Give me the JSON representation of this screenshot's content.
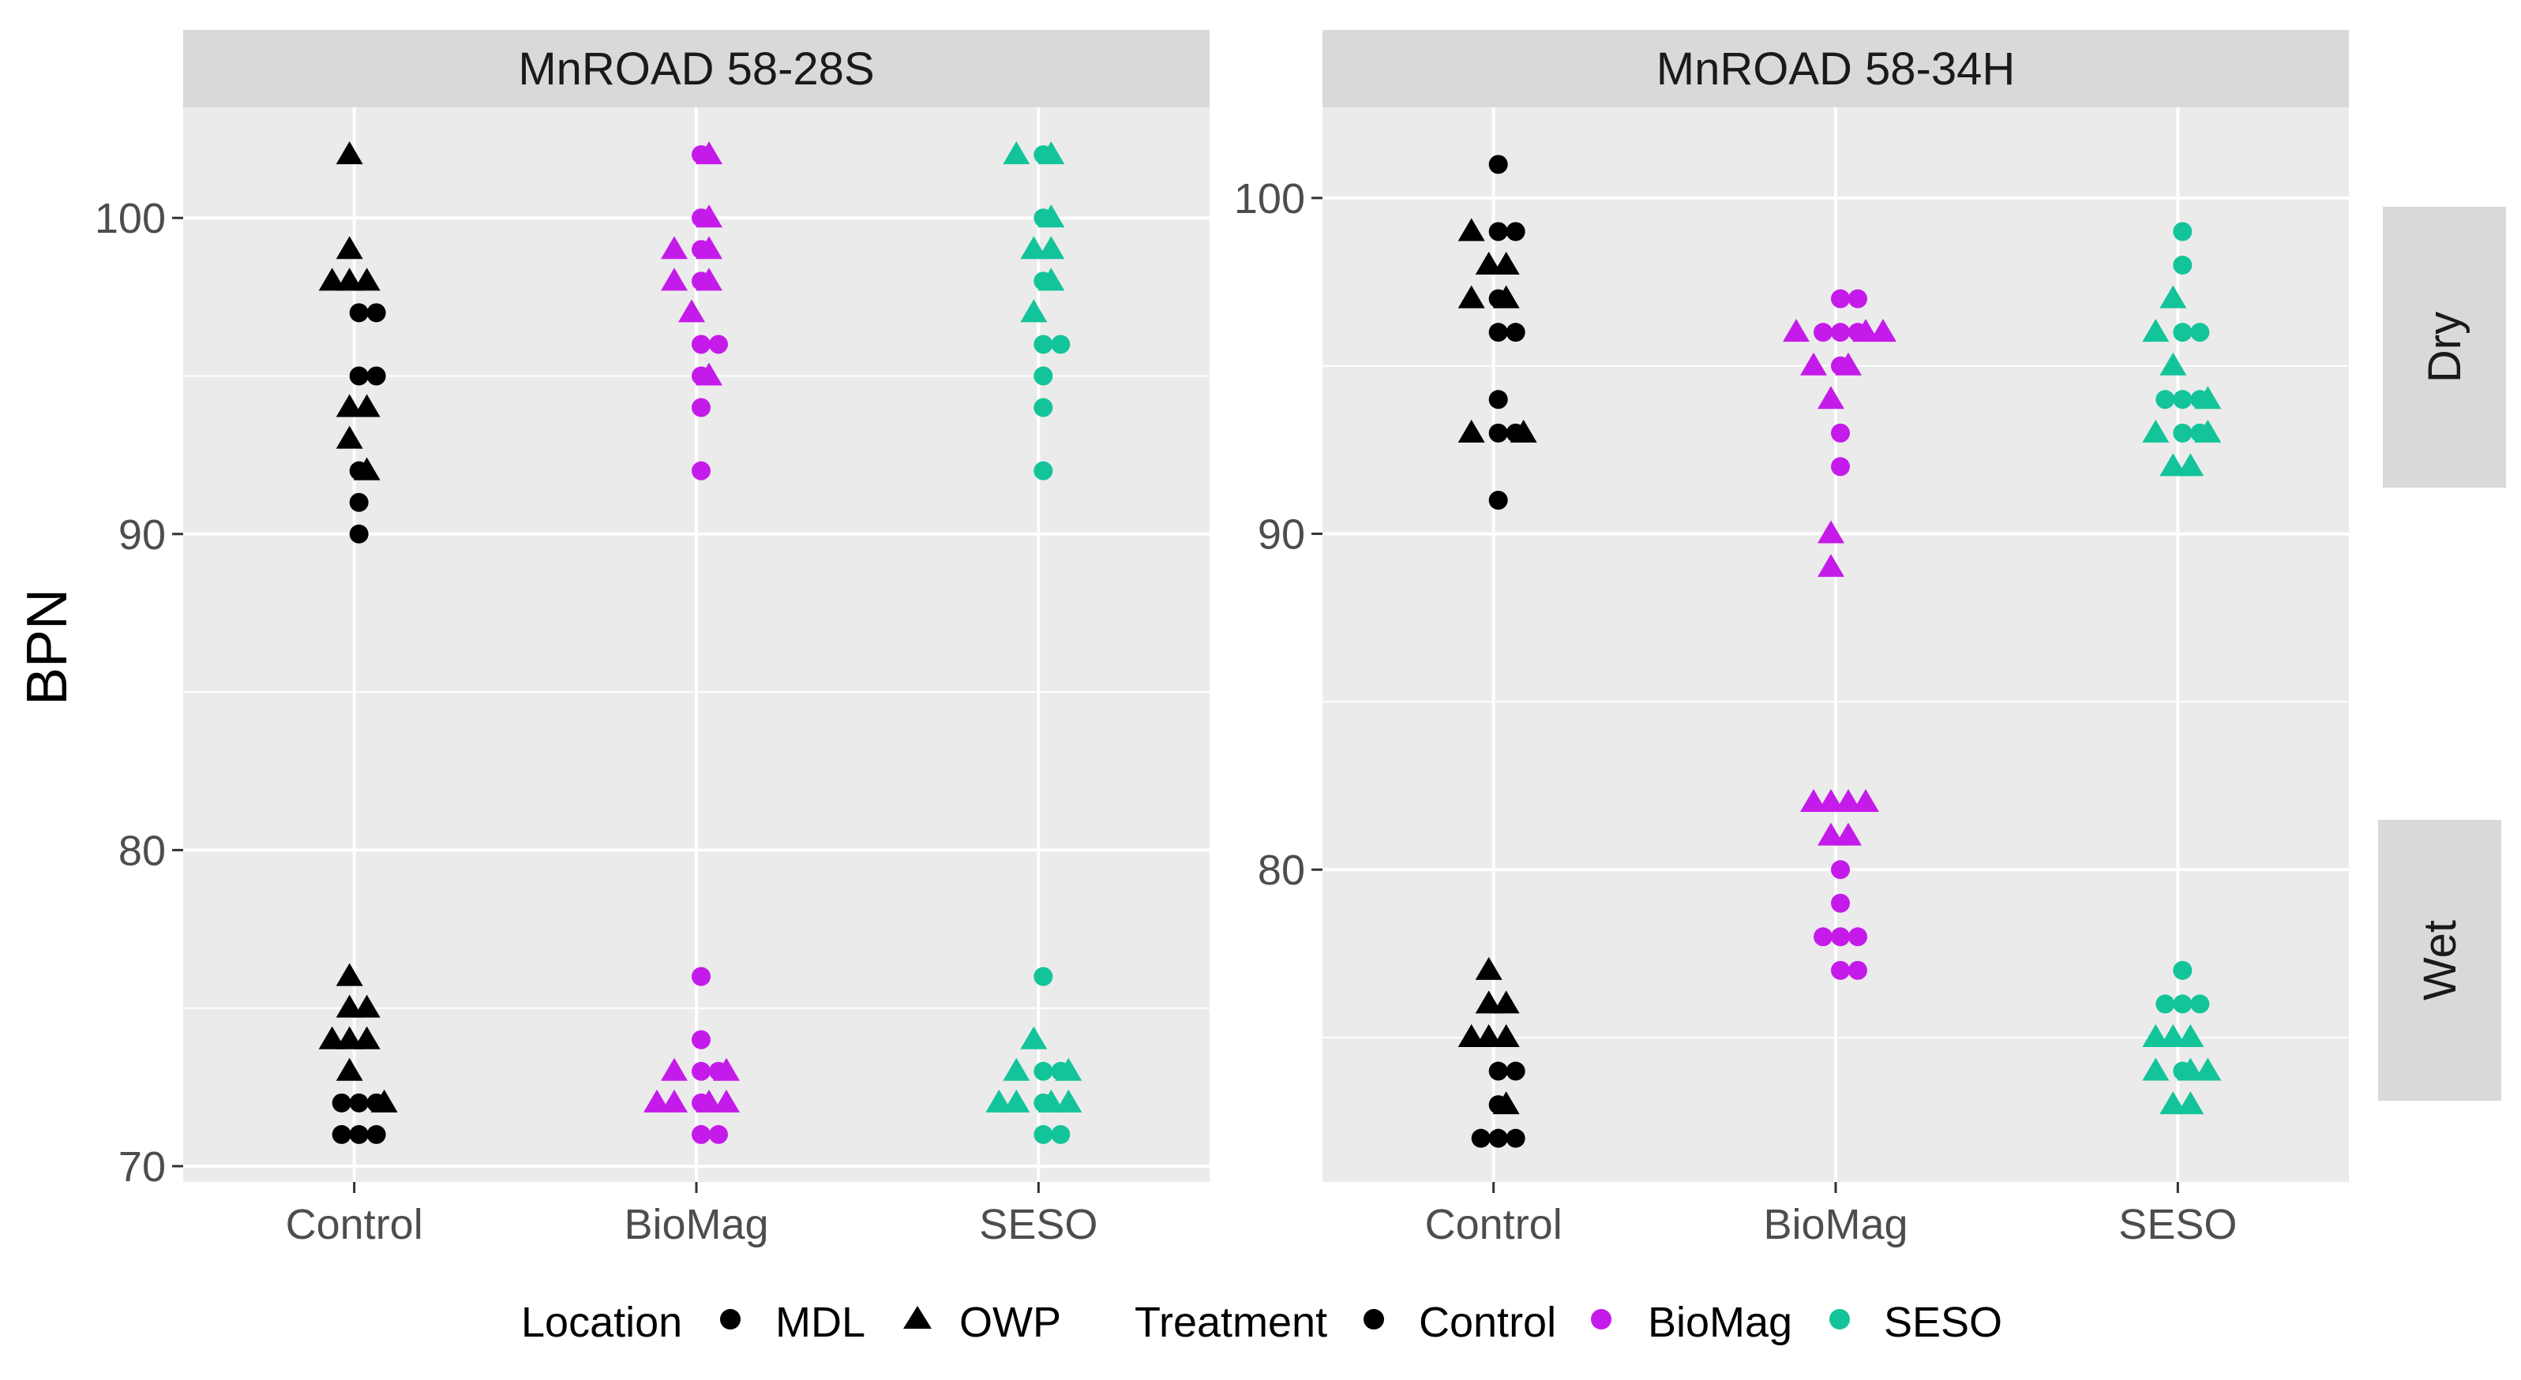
{
  "chart_data": {
    "type": "scatter",
    "subtype": "faceted beeswarm / strip plot",
    "y_axis_label": "BPN",
    "x_categories": [
      "Control",
      "BioMag",
      "SESO"
    ],
    "row_facets": [
      "Dry",
      "Wet"
    ],
    "legend": {
      "placement": "bottom",
      "location_title": "Location",
      "location_items": [
        {
          "label": "MDL",
          "shape": "circle"
        },
        {
          "label": "OWP",
          "shape": "triangle"
        }
      ],
      "treatment_title": "Treatment",
      "treatment_items": [
        {
          "label": "Control",
          "color": "#000000"
        },
        {
          "label": "BioMag",
          "color": "#C51BEA"
        },
        {
          "label": "SESO",
          "color": "#13C49A"
        }
      ]
    },
    "panels": [
      {
        "title": "MnROAD 58-28S",
        "ylim": [
          69.5,
          103.5
        ],
        "yticks": [
          70,
          80,
          90,
          100
        ],
        "series": {
          "Control": {
            "MDL": [
              97,
              97,
              95,
              95,
              92,
              91,
              90,
              72,
              72,
              72,
              71,
              71,
              71
            ],
            "OWP": [
              102,
              99,
              98,
              98,
              98,
              94,
              94,
              93,
              92,
              76,
              75,
              75,
              74,
              74,
              74,
              73,
              72
            ]
          },
          "BioMag": {
            "MDL": [
              102,
              100,
              99,
              98,
              96,
              96,
              95,
              94,
              92,
              76,
              74,
              73,
              73,
              72,
              71,
              71
            ],
            "OWP": [
              102,
              100,
              99,
              99,
              98,
              98,
              97,
              95,
              73,
              73,
              72,
              72,
              72,
              72
            ]
          },
          "SESO": {
            "MDL": [
              102,
              100,
              98,
              96,
              96,
              95,
              94,
              92,
              76,
              73,
              73,
              72,
              71,
              71
            ],
            "OWP": [
              102,
              102,
              100,
              99,
              99,
              98,
              97,
              74,
              73,
              73,
              72,
              72,
              72,
              72
            ]
          }
        }
      },
      {
        "title": "MnROAD 58-34H",
        "ylim": [
          70.7,
          102.7
        ],
        "yticks": [
          80,
          90,
          100
        ],
        "series": {
          "Control": {
            "MDL": [
              101,
              99,
              99,
              97,
              96,
              96,
              94,
              93,
              93,
              91,
              74,
              74,
              73,
              72,
              72,
              72
            ],
            "OWP": [
              99,
              98,
              98,
              97,
              97,
              93,
              93,
              77,
              76,
              76,
              75,
              75,
              75,
              73
            ]
          },
          "BioMag": {
            "MDL": [
              97,
              97,
              96,
              96,
              96,
              95,
              93,
              92,
              80,
              79,
              78,
              78,
              78,
              77,
              77
            ],
            "OWP": [
              96,
              96,
              96,
              95,
              95,
              94,
              90,
              89,
              82,
              82,
              82,
              82,
              81,
              81
            ]
          },
          "SESO": {
            "MDL": [
              99,
              98,
              96,
              96,
              94,
              94,
              94,
              93,
              93,
              77,
              76,
              76,
              76,
              74
            ],
            "OWP": [
              97,
              96,
              95,
              94,
              93,
              93,
              92,
              92,
              75,
              75,
              75,
              74,
              74,
              74,
              73,
              73
            ]
          }
        }
      }
    ]
  }
}
